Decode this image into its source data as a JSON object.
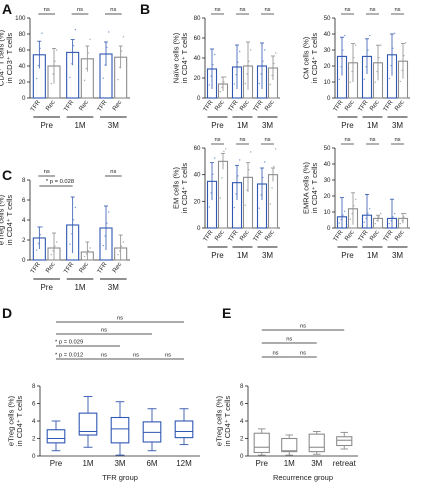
{
  "colors": {
    "tfr": "#2f56b0",
    "rec": "#8c8c8c",
    "axis": "#222222",
    "bar_fill": "#ffffff",
    "dot_tfr": "#7a9bd8",
    "dot_rec": "#a8a8a8"
  },
  "panels": {
    "A": {
      "letter": "A"
    },
    "B": {
      "letter": "B"
    },
    "C": {
      "letter": "C"
    },
    "D": {
      "letter": "D"
    },
    "E": {
      "letter": "E"
    }
  },
  "chart_data": [
    {
      "id": "A",
      "type": "bar",
      "ylabel_lines": [
        "CD4⁺ T cells (%)",
        "in CD3⁺ T cells"
      ],
      "ylim": [
        0,
        100
      ],
      "yticks": [
        "0",
        "20",
        "40",
        "60",
        "80",
        "100"
      ],
      "categories": [
        "TFR",
        "Rec",
        "TFR",
        "Rec",
        "TFR",
        "Rec"
      ],
      "groups": [
        "Pre",
        "1M",
        "3M"
      ],
      "values": [
        54,
        40,
        57,
        49,
        55,
        51
      ],
      "err": [
        17,
        22,
        16,
        16,
        15,
        14
      ],
      "annotations": [
        "ns",
        "ns",
        "ns"
      ]
    },
    {
      "id": "B1",
      "type": "bar",
      "ylabel_lines": [
        "Naïve cells (%)",
        "in CD4⁺ T cells"
      ],
      "ylim": [
        0,
        80
      ],
      "yticks": [
        "0",
        "20",
        "40",
        "60",
        "80"
      ],
      "categories": [
        "TFR",
        "Rec",
        "TFR",
        "Rec",
        "TFR",
        "Rec"
      ],
      "groups": [
        "Pre",
        "1M",
        "3M"
      ],
      "values": [
        29,
        14,
        31,
        32,
        32,
        30
      ],
      "err": [
        20,
        7,
        22,
        24,
        23,
        12
      ],
      "annotations": [
        "ns",
        "ns",
        "ns"
      ]
    },
    {
      "id": "B2",
      "type": "bar",
      "ylabel_lines": [
        "CM cells (%)",
        "in CD4⁺ T cells"
      ],
      "ylim": [
        0,
        50
      ],
      "yticks": [
        "0",
        "10",
        "20",
        "30",
        "40",
        "50"
      ],
      "categories": [
        "TFR",
        "Rec",
        "TFR",
        "Rec",
        "TFR",
        "Rec"
      ],
      "groups": [
        "Pre",
        "1M",
        "3M"
      ],
      "values": [
        26,
        22,
        26,
        22,
        27,
        23
      ],
      "err": [
        12,
        12,
        11,
        11,
        13,
        11
      ],
      "annotations": [
        "ns",
        "ns",
        "ns"
      ]
    },
    {
      "id": "B3",
      "type": "bar",
      "ylabel_lines": [
        "EM cells (%)",
        "in CD4⁺ T cells"
      ],
      "ylim": [
        0,
        60
      ],
      "yticks": [
        "0",
        "20",
        "40",
        "60"
      ],
      "categories": [
        "TFR",
        "Rec",
        "TFR",
        "Rec",
        "TFR",
        "Rec"
      ],
      "groups": [
        "Pre",
        "1M",
        "3M"
      ],
      "values": [
        35,
        50,
        34,
        38,
        33,
        40
      ],
      "err": [
        14,
        6,
        13,
        11,
        12,
        5
      ],
      "annotations": [
        "ns",
        "ns",
        "ns"
      ]
    },
    {
      "id": "B4",
      "type": "bar",
      "ylabel_lines": [
        "EMRA cells (%)",
        "in CD4⁺ T cells"
      ],
      "ylim": [
        0,
        50
      ],
      "yticks": [
        "0",
        "10",
        "20",
        "30",
        "40",
        "50"
      ],
      "categories": [
        "TFR",
        "Rec",
        "TFR",
        "Rec",
        "TFR",
        "Rec"
      ],
      "groups": [
        "Pre",
        "1M",
        "3M"
      ],
      "values": [
        7,
        12,
        8,
        6,
        6,
        6
      ],
      "err": [
        12,
        10,
        13,
        2,
        12,
        3
      ],
      "annotations": [
        "ns",
        "ns",
        "ns"
      ]
    },
    {
      "id": "C",
      "type": "bar",
      "ylabel_lines": [
        "eTreg cells (%)",
        "in CD4⁺ T cells"
      ],
      "ylim": [
        0,
        8
      ],
      "yticks": [
        "0",
        "2",
        "4",
        "6",
        "8"
      ],
      "categories": [
        "TFR",
        "Rec",
        "TFR",
        "Rec",
        "TFR",
        "Rec"
      ],
      "groups": [
        "Pre",
        "1M",
        "3M"
      ],
      "values": [
        2.2,
        1.2,
        3.5,
        0.8,
        3.2,
        1.2
      ],
      "err": [
        1.1,
        1.5,
        2.8,
        1.0,
        2.2,
        1.3
      ],
      "annotations": [
        "ns",
        "ns"
      ],
      "pvalue": "* p = 0.028"
    },
    {
      "id": "D",
      "type": "box",
      "ylabel_lines": [
        "eTreg cells (%)",
        "in CD4⁺ T cells"
      ],
      "xlabel": "TFR group",
      "ylim": [
        0,
        8
      ],
      "yticks": [
        "0",
        "2",
        "4",
        "6",
        "8"
      ],
      "categories": [
        "Pre",
        "1M",
        "3M",
        "6M",
        "12M"
      ],
      "boxes": [
        {
          "min": 0.6,
          "q1": 1.5,
          "median": 2.0,
          "q3": 3.0,
          "max": 4.0
        },
        {
          "min": 1.0,
          "q1": 2.4,
          "median": 2.8,
          "q3": 4.9,
          "max": 6.8
        },
        {
          "min": 0.1,
          "q1": 1.5,
          "median": 3.1,
          "q3": 4.4,
          "max": 6.2
        },
        {
          "min": 0.6,
          "q1": 1.6,
          "median": 2.7,
          "q3": 3.9,
          "max": 5.4
        },
        {
          "min": 1.3,
          "q1": 2.1,
          "median": 2.8,
          "q3": 4.0,
          "max": 5.4
        }
      ],
      "annotations": [
        "ns",
        "ns",
        "* p = 0.029",
        "* p = 0.012",
        "ns",
        "ns",
        "ns"
      ]
    },
    {
      "id": "E",
      "type": "box",
      "ylabel_lines": [
        "eTreg cells (%)",
        "in CD4⁺ T cells"
      ],
      "xlabel": "Recurrence group",
      "ylim": [
        0,
        8
      ],
      "yticks": [
        "0",
        "2",
        "4",
        "6",
        "8"
      ],
      "categories": [
        "Pre",
        "1M",
        "3M",
        "retreat"
      ],
      "boxes": [
        {
          "min": 0.1,
          "q1": 0.4,
          "median": 1.0,
          "q3": 2.6,
          "max": 3.1
        },
        {
          "min": 0.1,
          "q1": 0.5,
          "median": 0.6,
          "q3": 2.0,
          "max": 2.4
        },
        {
          "min": 0.2,
          "q1": 0.5,
          "median": 1.0,
          "q3": 2.5,
          "max": 2.8
        },
        {
          "min": 0.8,
          "q1": 1.2,
          "median": 1.8,
          "q3": 2.2,
          "max": 2.7
        }
      ],
      "annotations": [
        "ns",
        "ns",
        "ns",
        "ns"
      ]
    }
  ]
}
